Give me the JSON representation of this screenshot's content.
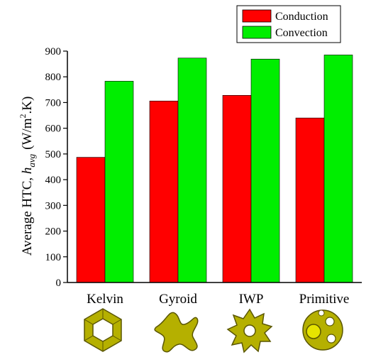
{
  "chart_data": {
    "type": "bar",
    "categories": [
      "Kelvin",
      "Gyroid",
      "IWP",
      "Primitive"
    ],
    "series": [
      {
        "name": "Conduction",
        "values": [
          487,
          706,
          728,
          640
        ],
        "color": "#ff0000"
      },
      {
        "name": "Convection",
        "values": [
          783,
          873,
          869,
          885
        ],
        "color": "#00ee00"
      }
    ],
    "ylabel": {
      "prefix": "Average HTC, ",
      "symbol": "h",
      "subscript": "avg",
      "units_pre": "(W/m",
      "units_sup": "2",
      "units_post": ".K)"
    },
    "ylim": [
      0,
      900
    ],
    "yticks": [
      0,
      100,
      200,
      300,
      400,
      500,
      600,
      700,
      800,
      900
    ],
    "grid": false,
    "legend_position": "top-right"
  },
  "icons": [
    "kelvin-cell-icon",
    "gyroid-cell-icon",
    "iwp-cell-icon",
    "primitive-cell-icon"
  ],
  "icon_color": "#b5b000"
}
